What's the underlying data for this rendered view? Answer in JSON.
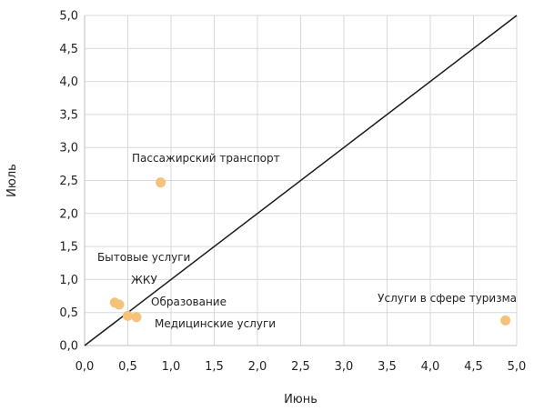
{
  "chart_data": {
    "type": "scatter",
    "xlabel": "Июнь",
    "ylabel": "Июль",
    "xlim": [
      0,
      5
    ],
    "ylim": [
      0,
      5
    ],
    "x_ticks": [
      "0,0",
      "0,5",
      "1,0",
      "1,5",
      "2,0",
      "2,5",
      "3,0",
      "3,5",
      "4,0",
      "4,5",
      "5,0"
    ],
    "y_ticks": [
      "0,0",
      "0,5",
      "1,0",
      "1,5",
      "2,0",
      "2,5",
      "3,0",
      "3,5",
      "4,0",
      "4,5",
      "5,0"
    ],
    "reference_line": {
      "from": [
        0,
        0
      ],
      "to": [
        5,
        5
      ],
      "color": "#1a1a1a"
    },
    "point_color": "#f5c27a",
    "points": [
      {
        "label": "Пассажирский транспорт",
        "x": 0.88,
        "y": 2.47
      },
      {
        "label": "Бытовые услуги",
        "x": 0.35,
        "y": 0.65
      },
      {
        "label": "ЖКУ",
        "x": 0.4,
        "y": 0.62
      },
      {
        "label": "Образование",
        "x": 0.5,
        "y": 0.45
      },
      {
        "label": "Медицинские услуги",
        "x": 0.6,
        "y": 0.43
      },
      {
        "label": "Услуги в сфере туризма",
        "x": 4.87,
        "y": 0.38
      }
    ]
  }
}
